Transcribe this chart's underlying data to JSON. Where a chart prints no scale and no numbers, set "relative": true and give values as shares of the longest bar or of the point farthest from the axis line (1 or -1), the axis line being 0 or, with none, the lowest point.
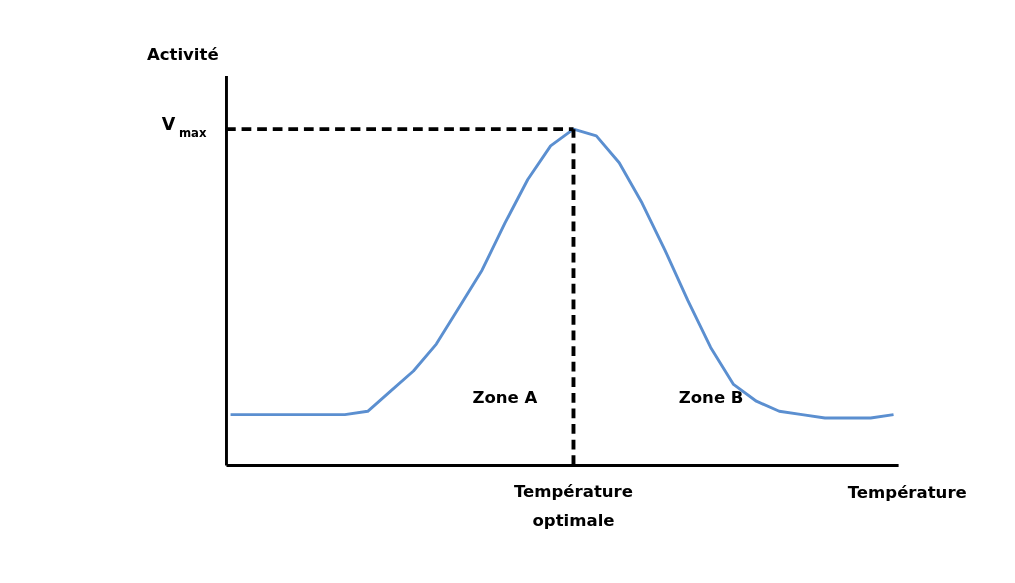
{
  "chart_data": {
    "type": "line",
    "relative": true,
    "xlabel": "Température",
    "ylabel": "Activité",
    "categories": [
      null,
      null,
      null,
      null,
      null,
      null,
      null,
      null,
      null,
      null,
      null,
      null,
      null,
      null,
      null,
      null,
      null,
      null,
      null,
      null,
      null,
      null,
      null,
      null,
      null,
      null,
      null,
      null,
      null,
      null
    ],
    "series": [
      {
        "color": "#5b8fd0",
        "values": [
          0.15,
          0.15,
          0.15,
          0.15,
          0.15,
          0.15,
          0.16,
          0.22,
          0.28,
          0.36,
          0.47,
          0.58,
          0.72,
          0.85,
          0.95,
          1.0,
          0.98,
          0.9,
          0.78,
          0.64,
          0.49,
          0.35,
          0.24,
          0.19,
          0.16,
          0.15,
          0.14,
          0.14,
          0.14,
          0.15
        ]
      }
    ],
    "ref_lines": [
      {
        "axis": "y",
        "value": 1,
        "label": "V$_{max}$",
        "line_style": "dashed",
        "color": "#000000"
      },
      {
        "axis": "x",
        "label": "Température optimale",
        "line_style": "dashed",
        "color": "#000000"
      }
    ],
    "annotations": [
      "Zone A",
      "Zone B"
    ],
    "grid": false,
    "marker": "none",
    "line_style": "solid"
  }
}
